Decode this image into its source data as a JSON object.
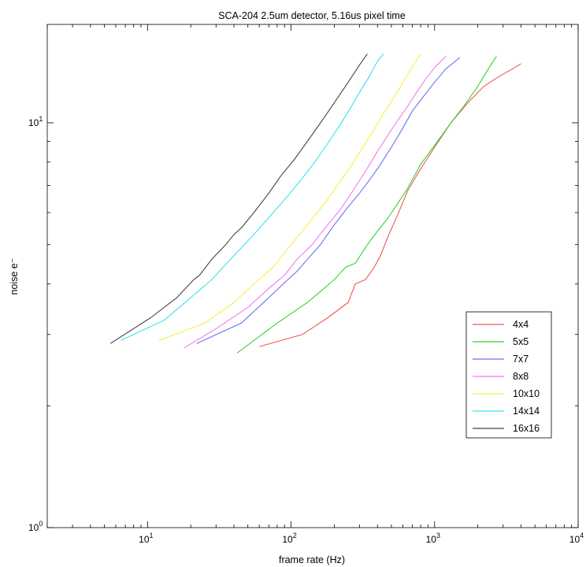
{
  "chart_data": {
    "type": "line",
    "title": "SCA-204 2.5um detector, 5.16us pixel time",
    "xlabel": "frame rate (Hz)",
    "ylabel": "noise e⁻",
    "xscale": "log",
    "yscale": "log",
    "xlim": [
      2,
      10000
    ],
    "ylim": [
      1,
      17.5
    ],
    "xticks": [
      {
        "value": 10,
        "base": "10",
        "exp": "1"
      },
      {
        "value": 100,
        "base": "10",
        "exp": "2"
      },
      {
        "value": 1000,
        "base": "10",
        "exp": "3"
      },
      {
        "value": 10000,
        "base": "10",
        "exp": "4"
      }
    ],
    "yticks": [
      {
        "value": 1,
        "base": "10",
        "exp": "0"
      },
      {
        "value": 10,
        "base": "10",
        "exp": "1"
      }
    ],
    "grid": false,
    "legend_position": "right",
    "series": [
      {
        "name": "4x4",
        "color": "#ee5a4f",
        "x": [
          60,
          120,
          180,
          250,
          280,
          330,
          380,
          420,
          470,
          550,
          650,
          800,
          1000,
          1300,
          1700,
          2200,
          2800,
          3500,
          4000
        ],
        "y": [
          2.8,
          3.0,
          3.3,
          3.6,
          4.0,
          4.1,
          4.4,
          4.7,
          5.2,
          5.9,
          6.8,
          7.7,
          8.7,
          10.0,
          11.2,
          12.3,
          13.0,
          13.6,
          14.0
        ]
      },
      {
        "name": "5x5",
        "color": "#33d433",
        "x": [
          42,
          80,
          130,
          170,
          200,
          240,
          280,
          340,
          400,
          470,
          550,
          650,
          800,
          1000,
          1300,
          1600,
          2000,
          2400,
          2700
        ],
        "y": [
          2.7,
          3.2,
          3.6,
          3.9,
          4.1,
          4.4,
          4.5,
          5.0,
          5.4,
          5.8,
          6.3,
          6.9,
          7.9,
          8.8,
          10.0,
          11.0,
          12.3,
          13.7,
          14.6
        ]
      },
      {
        "name": "7x7",
        "color": "#6e6ef0",
        "x": [
          22,
          45,
          70,
          95,
          110,
          130,
          160,
          200,
          250,
          300,
          360,
          420,
          500,
          600,
          700,
          850,
          1000,
          1200,
          1500
        ],
        "y": [
          2.85,
          3.2,
          3.7,
          4.1,
          4.3,
          4.6,
          5.0,
          5.6,
          6.2,
          6.7,
          7.3,
          7.9,
          8.7,
          9.7,
          10.7,
          11.7,
          12.6,
          13.6,
          14.5
        ]
      },
      {
        "name": "8x8",
        "color": "#f07af0",
        "x": [
          18,
          30,
          50,
          70,
          90,
          110,
          140,
          180,
          220,
          270,
          330,
          400,
          480,
          560,
          650,
          750,
          850,
          1000,
          1200
        ],
        "y": [
          2.78,
          3.1,
          3.5,
          3.9,
          4.2,
          4.6,
          5.0,
          5.6,
          6.1,
          6.8,
          7.6,
          8.5,
          9.4,
          10.2,
          11.0,
          11.9,
          12.7,
          13.7,
          14.6
        ]
      },
      {
        "name": "10x10",
        "color": "#f5f04a",
        "x": [
          12,
          25,
          40,
          55,
          75,
          100,
          130,
          170,
          210,
          260,
          310,
          370,
          430,
          500,
          580,
          650,
          800
        ],
        "y": [
          2.9,
          3.2,
          3.6,
          4.0,
          4.4,
          5.0,
          5.6,
          6.3,
          7.0,
          7.8,
          8.6,
          9.5,
          10.4,
          11.3,
          12.3,
          13.2,
          14.8
        ]
      },
      {
        "name": "14x14",
        "color": "#33e6ee",
        "x": [
          6.5,
          13,
          20,
          28,
          40,
          55,
          75,
          95,
          120,
          150,
          180,
          220,
          260,
          300,
          350,
          400,
          440
        ],
        "y": [
          2.9,
          3.25,
          3.7,
          4.1,
          4.7,
          5.3,
          6.0,
          6.6,
          7.3,
          8.1,
          8.9,
          9.9,
          10.9,
          11.9,
          13.0,
          14.2,
          14.8
        ]
      },
      {
        "name": "16x16",
        "color": "#444444",
        "x": [
          5.5,
          10.5,
          16,
          21,
          23,
          28,
          35,
          40,
          45,
          55,
          70,
          85,
          105,
          130,
          170,
          210,
          250,
          300,
          340
        ],
        "y": [
          2.85,
          3.3,
          3.7,
          4.1,
          4.2,
          4.6,
          5.0,
          5.3,
          5.5,
          6.0,
          6.7,
          7.4,
          8.1,
          9.0,
          10.3,
          11.5,
          12.6,
          13.9,
          14.8
        ]
      }
    ]
  }
}
